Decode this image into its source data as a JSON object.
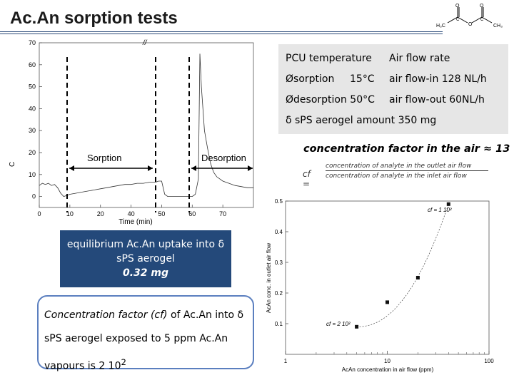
{
  "slide": {
    "title": "Ac.An sorption tests"
  },
  "info": {
    "pcu_label": "PCU temperature",
    "airflow_label": "Air flow rate",
    "sorption_label": "Øsorption",
    "sorption_temp": "15°C",
    "airflow_in": "air flow-in  128 NL/h",
    "desorption_label": "Ødesorption 50°C",
    "airflow_out": "air flow-out  60NL/h",
    "aerogel_amount": "δ sPS aerogel amount 350 mg"
  },
  "cf_heading": "concentration factor in the air ≈ 13",
  "cf_formula": {
    "lhs": "cf =",
    "numerator": "concentration of analyte in the outlet air flow",
    "denominator": "concentration of analyte in the inlet air flow"
  },
  "uptake_box": {
    "line1": "equilibrium Ac.An uptake into δ",
    "line2": "sPS aerogel",
    "value": "0.32 mg"
  },
  "cf_box": {
    "line1_a": "Concentration factor (cf)",
    "line1_b": " of Ac.An into δ",
    "line2": "sPS  aerogel  exposed  to  5  ppm  Ac.An",
    "line3": "vapours is 2 10",
    "line3_sup": "2"
  },
  "colors": {
    "title_rule": "#2b4a7a",
    "uptake_box_bg": "#24497a",
    "cf_box_border": "#5b7fbf",
    "info_panel_bg": "#e6e6e6"
  },
  "chart_data": [
    {
      "type": "line",
      "xlabel": "Time (min)",
      "ylabel": "C",
      "xlim": [
        0,
        70
      ],
      "ylim": [
        -5,
        70
      ],
      "x_ticks": [
        0,
        10,
        20,
        30,
        40,
        50,
        60,
        70
      ],
      "x_tick_labels": [
        "0",
        "10",
        "20",
        "40",
        "50",
        "60",
        "70"
      ],
      "x_tick_positions": [
        0,
        10,
        20,
        30,
        40,
        50,
        60
      ],
      "y_ticks": [
        0,
        10,
        20,
        30,
        40,
        50,
        60,
        70
      ],
      "y_tick_labels": [
        "0",
        "10",
        "20",
        "30",
        "40",
        "50",
        "60",
        "70"
      ],
      "axis_break": "//",
      "phase_labels": [
        "Sorption",
        "Desorption"
      ],
      "series": [
        {
          "x": [
            0,
            1,
            2,
            3,
            4,
            5,
            6,
            7,
            8,
            9,
            10,
            12,
            14,
            16,
            18,
            20,
            22,
            24,
            26,
            28,
            30,
            32,
            34,
            36,
            38,
            39,
            40,
            41,
            42,
            44,
            46,
            48,
            49,
            50,
            51,
            52,
            52.5,
            53,
            54,
            55,
            56,
            57,
            58,
            60,
            62,
            64,
            66,
            68,
            70
          ],
          "y": [
            5,
            6,
            5.5,
            6,
            5,
            5.5,
            4,
            1.5,
            0,
            0.5,
            1,
            1.5,
            2,
            2.5,
            3,
            3.5,
            4,
            4.5,
            5,
            5.5,
            5.5,
            6,
            6,
            6.5,
            6.5,
            7,
            7,
            1,
            0,
            0,
            0,
            0,
            0,
            0,
            1,
            8,
            65,
            50,
            30,
            22,
            15,
            11,
            9,
            7,
            6,
            5,
            4.5,
            4,
            4
          ]
        }
      ]
    },
    {
      "type": "scatter",
      "xlabel": "AcAn concentration in air flow (ppm)",
      "ylabel": "AcAn conc. in outlet air flow",
      "xscale": "log",
      "xlim": [
        1,
        100
      ],
      "ylim": [
        0,
        0.5
      ],
      "x_tick_labels": [
        "1",
        "10",
        "100"
      ],
      "y_ticks": [
        0.1,
        0.2,
        0.3,
        0.4,
        0.5
      ],
      "y_tick_labels": [
        "0.1",
        "0.2",
        "0.3",
        "0.4",
        "0.5"
      ],
      "annotations": [
        "cf = 1 10²",
        "cf = 2 10²"
      ],
      "series": [
        {
          "x": [
            5,
            10,
            20,
            40
          ],
          "y": [
            0.09,
            0.17,
            0.25,
            0.49
          ]
        }
      ]
    }
  ]
}
